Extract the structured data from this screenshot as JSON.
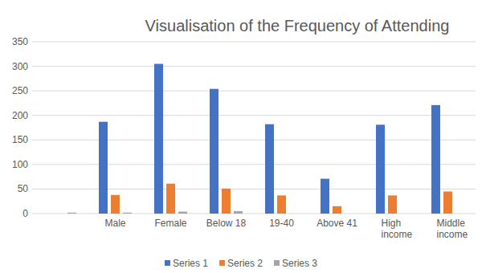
{
  "chart_data": {
    "type": "bar",
    "title": "Visualisation of the Frequency of Attending",
    "categories": [
      null,
      "Male",
      "Female",
      "Below 18",
      "19-40",
      "Above 41",
      "High income",
      "Middle income"
    ],
    "series": [
      {
        "name": "Series 1",
        "color": "#4472c4",
        "values": [
          0,
          187,
          305,
          254,
          182,
          71,
          181,
          221
        ]
      },
      {
        "name": "Series 2",
        "color": "#ed7d31",
        "values": [
          0,
          38,
          61,
          51,
          37,
          15,
          37,
          45
        ]
      },
      {
        "name": "Series 3",
        "color": "#a5a5a5",
        "values": [
          2,
          2,
          4,
          5,
          0,
          0,
          0,
          0
        ]
      }
    ],
    "ylim": [
      0,
      350
    ],
    "yticks": [
      0,
      50,
      100,
      150,
      200,
      250,
      300,
      350
    ],
    "grid": true,
    "legend": "bottom"
  }
}
